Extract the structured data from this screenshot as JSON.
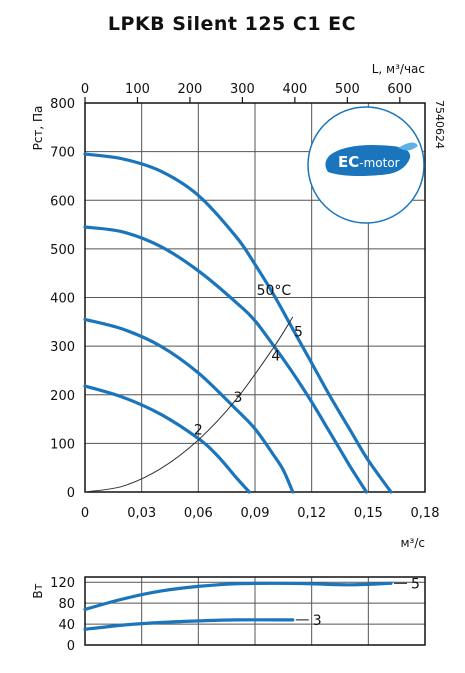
{
  "title": "LPKB Silent 125 C1 EC",
  "product_code": "7540624",
  "badge_text": {
    "bold": "EC",
    "rest": "-motor"
  },
  "colors": {
    "curve": "#1a75bc",
    "grid": "#555555",
    "axis": "#111111",
    "system": "#333333"
  },
  "chart_data": [
    {
      "type": "line",
      "x_axis": {
        "label": "м³/с",
        "range": [
          0,
          0.18
        ],
        "ticks": [
          "0",
          "0,03",
          "0,06",
          "0,09",
          "0,12",
          "0,15",
          "0,18"
        ]
      },
      "x2_axis": {
        "label": "L, м³/час",
        "range": [
          0,
          648
        ],
        "ticks": [
          "0",
          "100",
          "200",
          "300",
          "400",
          "500",
          "600"
        ]
      },
      "y_axis": {
        "label": "Pст, Па",
        "range": [
          0,
          800
        ],
        "ticks": [
          "0",
          "100",
          "200",
          "300",
          "400",
          "500",
          "600",
          "700",
          "800"
        ]
      },
      "grid": true,
      "series": [
        {
          "name": "5",
          "x": [
            0,
            0.02,
            0.04,
            0.06,
            0.08,
            0.09,
            0.1,
            0.11,
            0.12,
            0.13,
            0.14,
            0.15,
            0.162
          ],
          "y": [
            695,
            685,
            660,
            610,
            525,
            468,
            405,
            335,
            265,
            195,
            130,
            65,
            0
          ]
        },
        {
          "name": "4",
          "x": [
            0,
            0.02,
            0.04,
            0.06,
            0.08,
            0.09,
            0.1,
            0.11,
            0.12,
            0.13,
            0.14,
            0.149
          ],
          "y": [
            545,
            535,
            505,
            455,
            390,
            352,
            300,
            245,
            185,
            120,
            55,
            0
          ]
        },
        {
          "name": "3",
          "x": [
            0,
            0.02,
            0.04,
            0.06,
            0.08,
            0.09,
            0.1,
            0.105,
            0.11
          ],
          "y": [
            355,
            335,
            300,
            245,
            170,
            130,
            75,
            45,
            0
          ]
        },
        {
          "name": "2",
          "x": [
            0,
            0.02,
            0.04,
            0.06,
            0.07,
            0.08,
            0.087
          ],
          "y": [
            218,
            195,
            160,
            110,
            75,
            30,
            0
          ]
        }
      ],
      "system_curve": {
        "x": [
          0,
          0.02,
          0.04,
          0.06,
          0.08,
          0.1,
          0.11
        ],
        "y": [
          0,
          12,
          48,
          107,
          190,
          298,
          360
        ]
      },
      "annotations": [
        {
          "text": "5",
          "x": 0.113,
          "y": 320
        },
        {
          "text": "4",
          "x": 0.101,
          "y": 270
        },
        {
          "text": "3",
          "x": 0.081,
          "y": 185
        },
        {
          "text": "2",
          "x": 0.06,
          "y": 118
        },
        {
          "text": "50°C",
          "x": 0.1,
          "y": 405
        }
      ]
    },
    {
      "type": "line",
      "y_axis": {
        "label": "Вт",
        "range": [
          0,
          130
        ],
        "ticks": [
          "0",
          "40",
          "80",
          "120"
        ]
      },
      "x_axis": {
        "range": [
          0,
          0.18
        ]
      },
      "grid": true,
      "series": [
        {
          "name": "5",
          "x": [
            0,
            0.02,
            0.04,
            0.06,
            0.08,
            0.1,
            0.12,
            0.14,
            0.162
          ],
          "y": [
            68,
            88,
            103,
            112,
            117,
            118,
            117,
            115,
            118
          ]
        },
        {
          "name": "3",
          "x": [
            0,
            0.02,
            0.04,
            0.06,
            0.08,
            0.11
          ],
          "y": [
            30,
            38,
            43,
            46,
            48,
            48
          ]
        }
      ]
    }
  ]
}
